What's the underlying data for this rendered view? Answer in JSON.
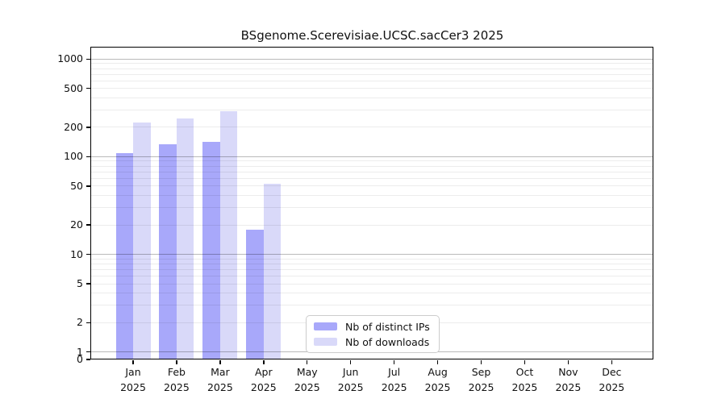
{
  "chart_data": {
    "type": "bar",
    "title": "BSgenome.Scerevisiae.UCSC.sacCer3 2025",
    "xlabel": "",
    "ylabel": "",
    "yscale": "log",
    "yticks": [
      0,
      1,
      2,
      5,
      10,
      20,
      50,
      100,
      200,
      500,
      1000
    ],
    "ylim": [
      0,
      1300
    ],
    "grid": true,
    "legend_position": "bottom-center",
    "categories": [
      "Jan 2025",
      "Feb 2025",
      "Mar 2025",
      "Apr 2025",
      "May 2025",
      "Jun 2025",
      "Jul 2025",
      "Aug 2025",
      "Sep 2025",
      "Oct 2025",
      "Nov 2025",
      "Dec 2025"
    ],
    "series": [
      {
        "name": "Nb of distinct IPs",
        "color": "#a8a8fa",
        "values": [
          108,
          134,
          142,
          18,
          null,
          null,
          null,
          null,
          null,
          null,
          null,
          null
        ]
      },
      {
        "name": "Nb of downloads",
        "color": "#d9d9f9",
        "values": [
          223,
          245,
          291,
          53,
          null,
          null,
          null,
          null,
          null,
          null,
          null,
          null
        ]
      }
    ],
    "colors": {
      "grid_major": "#b8b8b8",
      "grid_minor": "#ececec",
      "axis": "#000000",
      "background": "#ffffff",
      "text": "#111111"
    }
  }
}
